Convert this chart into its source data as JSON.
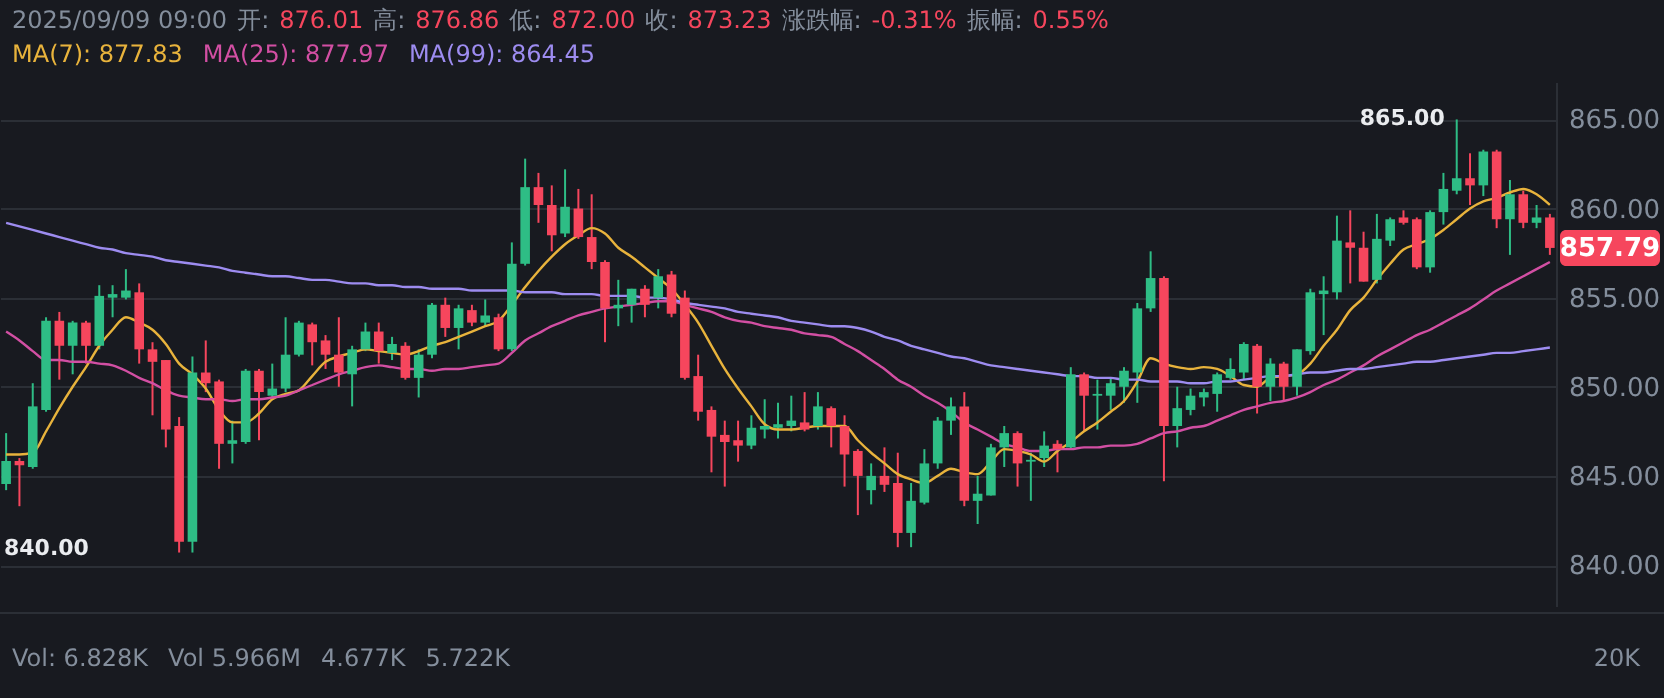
{
  "chart_data": {
    "type": "candlestick",
    "subtitle": "2025/09/09 09:00 开: 876.01 高: 876.86 低: 872.00 收: 873.23 涨跌幅: -0.31% 振幅: 0.55%",
    "categories": [
      null,
      null,
      null,
      null,
      null,
      null,
      null,
      null,
      null,
      null,
      null,
      null,
      null,
      null,
      null,
      null,
      null,
      null,
      null,
      null,
      null,
      null,
      null,
      null,
      null,
      null,
      null,
      null,
      null,
      null,
      null,
      null,
      null,
      null,
      null,
      null,
      null,
      null,
      null,
      null,
      null,
      null,
      null,
      null,
      null,
      null,
      null,
      null,
      null,
      null,
      null,
      null,
      null,
      null,
      null,
      null,
      null,
      null,
      null,
      null,
      null,
      null,
      null,
      null,
      null,
      null,
      null,
      null,
      null,
      null,
      null,
      null,
      null,
      null,
      null,
      null,
      null,
      null,
      null,
      null,
      null,
      null,
      null,
      null,
      null,
      null,
      null,
      null,
      null,
      null,
      null,
      null,
      null,
      null,
      null,
      null,
      null,
      null,
      null,
      null,
      null,
      null,
      null,
      null,
      null,
      null,
      null,
      null,
      null,
      null,
      null,
      null,
      null,
      null,
      null,
      null,
      null
    ],
    "ohlc": [
      [
        844.55,
        847.4,
        844.2,
        845.84
      ],
      [
        845.84,
        846.0,
        843.3,
        845.6
      ],
      [
        845.5,
        850.2,
        845.4,
        848.9
      ],
      [
        848.7,
        853.9,
        848.6,
        853.7
      ],
      [
        853.7,
        854.2,
        850.4,
        852.3
      ],
      [
        852.3,
        853.7,
        850.7,
        853.6
      ],
      [
        853.6,
        853.7,
        851.3,
        852.3
      ],
      [
        852.3,
        855.7,
        852.1,
        855.1
      ],
      [
        855.0,
        855.7,
        853.9,
        855.2
      ],
      [
        855.0,
        856.6,
        854.9,
        855.4
      ],
      [
        855.3,
        855.8,
        851.3,
        852.1
      ],
      [
        852.1,
        852.5,
        848.4,
        851.4
      ],
      [
        851.5,
        851.5,
        846.6,
        847.6
      ],
      [
        847.8,
        848.3,
        840.7,
        841.3
      ],
      [
        841.3,
        851.7,
        840.7,
        850.8
      ],
      [
        850.8,
        852.6,
        849.7,
        850.2
      ],
      [
        850.3,
        850.4,
        845.4,
        846.8
      ],
      [
        846.8,
        848.1,
        845.7,
        847.0
      ],
      [
        846.9,
        851.0,
        846.8,
        850.9
      ],
      [
        850.9,
        851.0,
        847.0,
        849.7
      ],
      [
        849.5,
        851.3,
        849.4,
        849.9
      ],
      [
        849.9,
        853.9,
        849.7,
        851.8
      ],
      [
        851.8,
        853.7,
        851.7,
        853.6
      ],
      [
        853.5,
        853.6,
        851.2,
        852.5
      ],
      [
        852.6,
        852.9,
        851.0,
        851.8
      ],
      [
        851.8,
        853.9,
        850.0,
        850.8
      ],
      [
        850.7,
        852.3,
        848.9,
        852.1
      ],
      [
        852.1,
        853.6,
        852.0,
        853.1
      ],
      [
        853.1,
        853.6,
        851.3,
        852.0
      ],
      [
        851.9,
        852.8,
        851.5,
        852.4
      ],
      [
        852.3,
        852.5,
        850.4,
        850.5
      ],
      [
        850.5,
        852.1,
        849.4,
        851.8
      ],
      [
        851.8,
        854.7,
        851.6,
        854.6
      ],
      [
        854.6,
        855.0,
        852.8,
        853.3
      ],
      [
        853.3,
        854.6,
        852.1,
        854.4
      ],
      [
        854.3,
        854.6,
        853.4,
        853.6
      ],
      [
        853.6,
        854.9,
        853.4,
        854.0
      ],
      [
        853.9,
        854.1,
        852.0,
        852.1
      ],
      [
        852.1,
        858.1,
        852.0,
        856.9
      ],
      [
        856.9,
        862.8,
        856.8,
        861.2
      ],
      [
        861.2,
        862.0,
        859.2,
        860.2
      ],
      [
        860.2,
        861.3,
        857.6,
        858.5
      ],
      [
        858.6,
        862.2,
        858.4,
        860.1
      ],
      [
        860.0,
        861.1,
        858.3,
        858.4
      ],
      [
        858.4,
        860.8,
        856.6,
        857.0
      ],
      [
        857.0,
        857.1,
        852.5,
        854.4
      ],
      [
        854.4,
        856.0,
        853.4,
        854.6
      ],
      [
        854.6,
        855.5,
        853.6,
        855.5
      ],
      [
        855.5,
        855.7,
        853.9,
        854.6
      ],
      [
        855.0,
        856.6,
        854.4,
        856.2
      ],
      [
        856.3,
        856.5,
        853.9,
        854.1
      ],
      [
        855.0,
        855.4,
        850.4,
        850.5
      ],
      [
        850.6,
        851.8,
        848.1,
        848.6
      ],
      [
        848.7,
        848.9,
        845.2,
        847.2
      ],
      [
        847.3,
        848.1,
        844.4,
        846.9
      ],
      [
        847.0,
        848.1,
        845.8,
        846.7
      ],
      [
        846.7,
        848.4,
        846.5,
        847.7
      ],
      [
        847.6,
        849.3,
        847.1,
        847.8
      ],
      [
        847.7,
        849.1,
        847.1,
        847.9
      ],
      [
        847.8,
        849.5,
        847.5,
        848.1
      ],
      [
        848.0,
        849.7,
        847.5,
        847.6
      ],
      [
        847.8,
        849.7,
        847.6,
        848.9
      ],
      [
        848.8,
        848.9,
        846.6,
        847.8
      ],
      [
        847.8,
        848.4,
        844.4,
        846.2
      ],
      [
        846.4,
        846.5,
        842.8,
        845.0
      ],
      [
        844.2,
        845.7,
        843.4,
        845.0
      ],
      [
        845.0,
        846.6,
        844.1,
        844.5
      ],
      [
        844.6,
        846.3,
        841.0,
        841.8
      ],
      [
        841.8,
        844.6,
        841.0,
        843.6
      ],
      [
        843.5,
        846.5,
        843.4,
        845.7
      ],
      [
        845.7,
        848.3,
        845.4,
        848.1
      ],
      [
        848.1,
        849.4,
        847.3,
        848.9
      ],
      [
        848.9,
        849.7,
        843.3,
        843.6
      ],
      [
        843.6,
        845.0,
        842.3,
        844.0
      ],
      [
        843.9,
        846.8,
        843.9,
        846.6
      ],
      [
        846.6,
        847.8,
        845.5,
        847.4
      ],
      [
        847.4,
        847.5,
        844.4,
        845.7
      ],
      [
        845.8,
        846.3,
        843.6,
        845.9
      ],
      [
        846.0,
        847.5,
        845.5,
        846.7
      ],
      [
        846.8,
        847.0,
        845.2,
        846.5
      ],
      [
        846.6,
        851.1,
        846.5,
        850.7
      ],
      [
        850.7,
        850.8,
        847.5,
        849.5
      ],
      [
        849.5,
        850.4,
        847.6,
        849.6
      ],
      [
        849.5,
        850.5,
        848.7,
        850.2
      ],
      [
        850.0,
        851.1,
        849.1,
        850.9
      ],
      [
        850.8,
        854.7,
        849.1,
        854.4
      ],
      [
        854.4,
        857.6,
        854.2,
        856.1
      ],
      [
        856.1,
        856.2,
        844.7,
        847.8
      ],
      [
        847.8,
        850.0,
        846.6,
        848.8
      ],
      [
        848.7,
        849.9,
        848.4,
        849.5
      ],
      [
        849.4,
        849.9,
        848.9,
        849.7
      ],
      [
        849.6,
        850.8,
        848.6,
        850.7
      ],
      [
        850.5,
        851.6,
        850.4,
        851.0
      ],
      [
        850.8,
        852.5,
        850.4,
        852.4
      ],
      [
        852.3,
        852.4,
        848.5,
        850.0
      ],
      [
        850.0,
        851.6,
        849.2,
        851.3
      ],
      [
        851.3,
        851.4,
        849.2,
        850.0
      ],
      [
        850.0,
        852.1,
        849.5,
        852.1
      ],
      [
        852.0,
        855.5,
        851.8,
        855.3
      ],
      [
        855.2,
        856.2,
        852.9,
        855.4
      ],
      [
        855.3,
        859.6,
        854.9,
        858.2
      ],
      [
        858.1,
        859.9,
        855.8,
        857.8
      ],
      [
        857.8,
        858.7,
        855.9,
        855.9
      ],
      [
        856.0,
        859.7,
        855.8,
        858.3
      ],
      [
        858.2,
        859.5,
        857.9,
        859.4
      ],
      [
        859.5,
        859.9,
        859.1,
        859.2
      ],
      [
        859.4,
        859.5,
        856.6,
        856.7
      ],
      [
        856.7,
        859.9,
        856.4,
        859.8
      ],
      [
        859.8,
        862.0,
        859.1,
        861.1
      ],
      [
        861.0,
        865.0,
        860.8,
        861.7
      ],
      [
        861.7,
        863.1,
        860.2,
        861.3
      ],
      [
        861.3,
        863.3,
        860.7,
        863.2
      ],
      [
        863.2,
        863.3,
        858.9,
        859.4
      ],
      [
        859.4,
        861.6,
        857.4,
        860.8
      ],
      [
        860.8,
        861.0,
        858.9,
        859.2
      ],
      [
        859.2,
        860.2,
        858.9,
        859.5
      ],
      [
        859.5,
        859.7,
        857.4,
        857.79
      ]
    ],
    "series": [
      {
        "name": "MA(7): 877.83",
        "type": "line",
        "color": "#e8b33c",
        "values": [
          846.2,
          846.2,
          846.3,
          847.5,
          848.8,
          850.0,
          851.1,
          852.3,
          853.2,
          853.9,
          853.6,
          853.2,
          852.4,
          851.3,
          850.7,
          849.9,
          848.7,
          848.0,
          848.0,
          848.5,
          849.3,
          849.6,
          849.8,
          850.6,
          851.4,
          851.7,
          851.9,
          852.1,
          852.0,
          851.9,
          851.8,
          852.0,
          852.3,
          852.5,
          852.8,
          853.1,
          853.4,
          853.7,
          854.6,
          855.6,
          856.5,
          857.3,
          858.0,
          858.5,
          858.9,
          858.6,
          857.8,
          857.3,
          856.7,
          856.1,
          855.5,
          854.6,
          853.6,
          852.3,
          851.0,
          849.9,
          848.9,
          847.9,
          847.6,
          847.6,
          847.7,
          847.8,
          847.8,
          847.8,
          847.0,
          846.3,
          845.7,
          845.1,
          844.8,
          844.6,
          845.0,
          845.4,
          845.2,
          845.1,
          845.8,
          846.5,
          846.4,
          846.2,
          845.8,
          846.4,
          846.9,
          847.5,
          848.0,
          848.6,
          849.2,
          850.3,
          851.6,
          851.3,
          851.1,
          851.0,
          851.1,
          851.0,
          850.6,
          850.1,
          850.0,
          850.5,
          850.6,
          850.7,
          851.3,
          852.3,
          853.2,
          854.3,
          855.0,
          856.0,
          856.9,
          857.7,
          858.0,
          858.3,
          858.8,
          859.4,
          860.0,
          860.4,
          860.6,
          860.9,
          861.1,
          860.8,
          860.2
        ]
      },
      {
        "name": "MA(25): 877.97",
        "type": "line",
        "color": "#d24fa3",
        "values": [
          853.1,
          852.6,
          852.0,
          851.5,
          851.5,
          851.4,
          851.4,
          851.3,
          851.2,
          850.9,
          850.5,
          850.2,
          849.8,
          849.5,
          849.4,
          849.3,
          849.3,
          849.2,
          849.3,
          849.3,
          849.4,
          849.5,
          849.8,
          850.1,
          850.4,
          850.7,
          850.9,
          851.1,
          851.2,
          851.1,
          851.0,
          851.0,
          850.9,
          851.0,
          851.0,
          851.1,
          851.2,
          851.3,
          851.9,
          852.6,
          853.0,
          853.4,
          853.7,
          854.0,
          854.2,
          854.4,
          854.5,
          854.6,
          854.7,
          854.8,
          854.8,
          854.6,
          854.4,
          854.2,
          853.9,
          853.7,
          853.6,
          853.4,
          853.3,
          853.2,
          853.0,
          852.9,
          852.8,
          852.4,
          852.0,
          851.5,
          851.0,
          850.4,
          850.0,
          849.5,
          849.1,
          848.6,
          848.0,
          847.6,
          847.2,
          846.8,
          846.6,
          846.4,
          846.4,
          846.5,
          846.5,
          846.6,
          846.6,
          846.7,
          846.7,
          846.8,
          847.1,
          847.4,
          847.5,
          847.7,
          847.8,
          848.1,
          848.4,
          848.7,
          848.9,
          849.1,
          849.2,
          849.4,
          849.7,
          850.1,
          850.4,
          850.8,
          851.2,
          851.7,
          852.1,
          852.5,
          852.9,
          853.2,
          853.6,
          854.0,
          854.4,
          854.9,
          855.4,
          855.8,
          856.2,
          856.6,
          857.0
        ]
      },
      {
        "name": "MA(99): 864.45",
        "type": "line",
        "color": "#9d8cf0",
        "values": [
          859.2,
          859.0,
          858.8,
          858.6,
          858.4,
          858.2,
          858.0,
          857.8,
          857.7,
          857.5,
          857.4,
          857.3,
          857.1,
          857.0,
          856.9,
          856.8,
          856.7,
          856.5,
          856.4,
          856.3,
          856.2,
          856.2,
          856.1,
          856.0,
          856.0,
          855.9,
          855.8,
          855.8,
          855.7,
          855.7,
          855.6,
          855.6,
          855.5,
          855.5,
          855.5,
          855.4,
          855.4,
          855.4,
          855.4,
          855.3,
          855.3,
          855.3,
          855.2,
          855.2,
          855.2,
          855.1,
          855.1,
          855.1,
          855.0,
          855.0,
          854.9,
          854.7,
          854.6,
          854.5,
          854.4,
          854.2,
          854.1,
          854.0,
          853.9,
          853.7,
          853.6,
          853.5,
          853.4,
          853.4,
          853.3,
          853.1,
          852.8,
          852.6,
          852.3,
          852.1,
          851.9,
          851.7,
          851.6,
          851.4,
          851.2,
          851.1,
          851.0,
          850.9,
          850.8,
          850.7,
          850.6,
          850.6,
          850.5,
          850.5,
          850.4,
          850.4,
          850.3,
          850.3,
          850.3,
          850.2,
          850.2,
          850.3,
          850.3,
          850.4,
          850.5,
          850.6,
          850.6,
          850.7,
          850.8,
          850.8,
          850.9,
          851.0,
          851.0,
          851.1,
          851.2,
          851.3,
          851.4,
          851.4,
          851.5,
          851.6,
          851.7,
          851.8,
          851.9,
          851.9,
          852.0,
          852.1,
          852.2
        ]
      }
    ],
    "ylim": [
      837.7,
      867.1
    ],
    "yticks": [
      {
        "value": 840,
        "label": "840.00"
      },
      {
        "value": 845,
        "label": "845.00"
      },
      {
        "value": 850,
        "label": "850.00"
      },
      {
        "value": 855,
        "label": "855.00"
      },
      {
        "value": 860,
        "label": "860.00"
      },
      {
        "value": 865,
        "label": "865.00"
      }
    ],
    "grid": "y",
    "legend": "top left",
    "tick_labels": "y",
    "annotations": [
      "Vol: 6.828K",
      "Vol 5.966M",
      "4.677K",
      "5.722K",
      "20K",
      "865.00",
      "840.00",
      "857.79"
    ]
  }
}
